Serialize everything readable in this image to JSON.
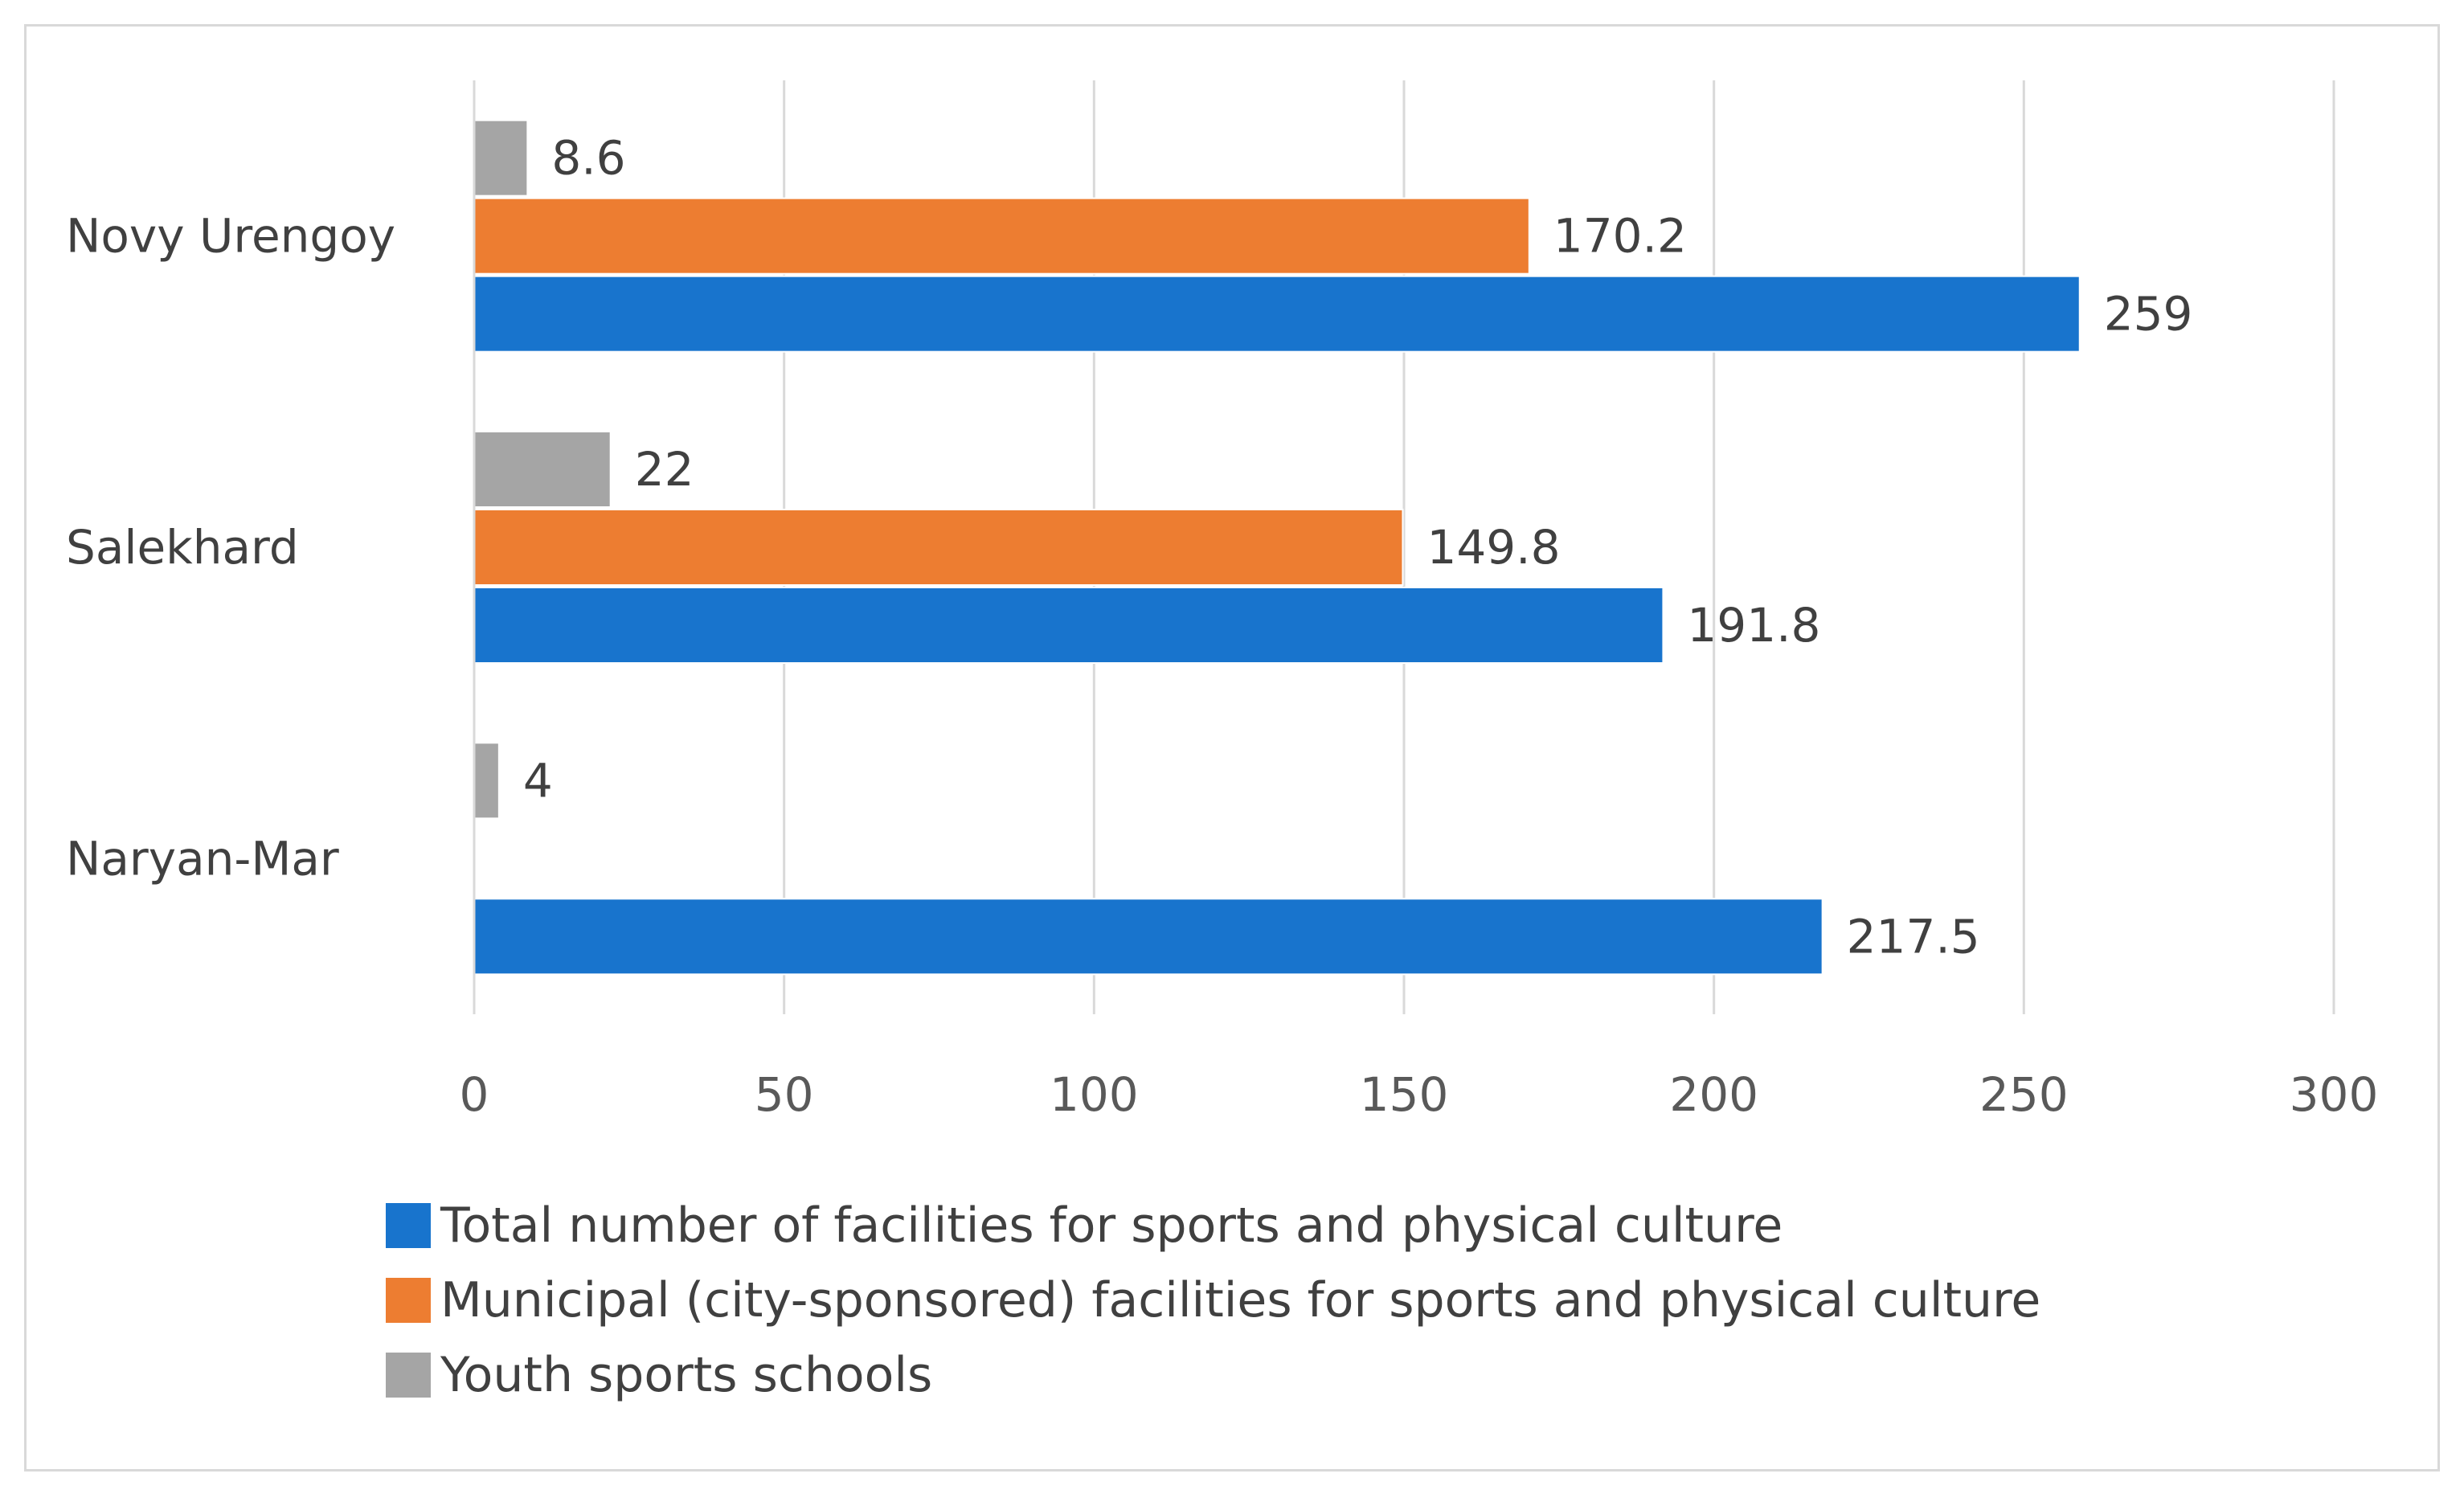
{
  "chart_data": {
    "type": "bar",
    "orientation": "horizontal",
    "categories": [
      "Novy Urengoy",
      "Salekhard",
      "Naryan-Mar"
    ],
    "series": [
      {
        "name": "Youth sports schools",
        "color": "#a5a5a5",
        "values": [
          8.6,
          22,
          4
        ]
      },
      {
        "name": "Municipal (city-sponsored) facilities for sports and physical culture",
        "color": "#ed7d31",
        "values": [
          170.2,
          149.8,
          null
        ]
      },
      {
        "name": "Total number of facilities for sports and physical culture",
        "color": "#1874cd",
        "values": [
          259,
          191.8,
          217.5
        ]
      }
    ],
    "data_labels": [
      [
        "8.6",
        "22",
        "4"
      ],
      [
        "170.2",
        "149.8",
        ""
      ],
      [
        "259",
        "191.8",
        "217.5"
      ]
    ],
    "xlim": [
      0,
      300
    ],
    "xticks": [
      0,
      50,
      100,
      150,
      200,
      250,
      300
    ],
    "xtick_labels": [
      "0",
      "50",
      "100",
      "150",
      "200",
      "250",
      "300"
    ],
    "grid": "vertical",
    "legend_position": "bottom",
    "legend": [
      {
        "label": "Total number of facilities for sports and physical culture",
        "color": "#1874cd"
      },
      {
        "label": "Municipal (city-sponsored) facilities for sports and physical culture",
        "color": "#ed7d31"
      },
      {
        "label": "Youth sports schools",
        "color": "#a5a5a5"
      }
    ],
    "title": "",
    "xlabel": "",
    "ylabel": ""
  }
}
